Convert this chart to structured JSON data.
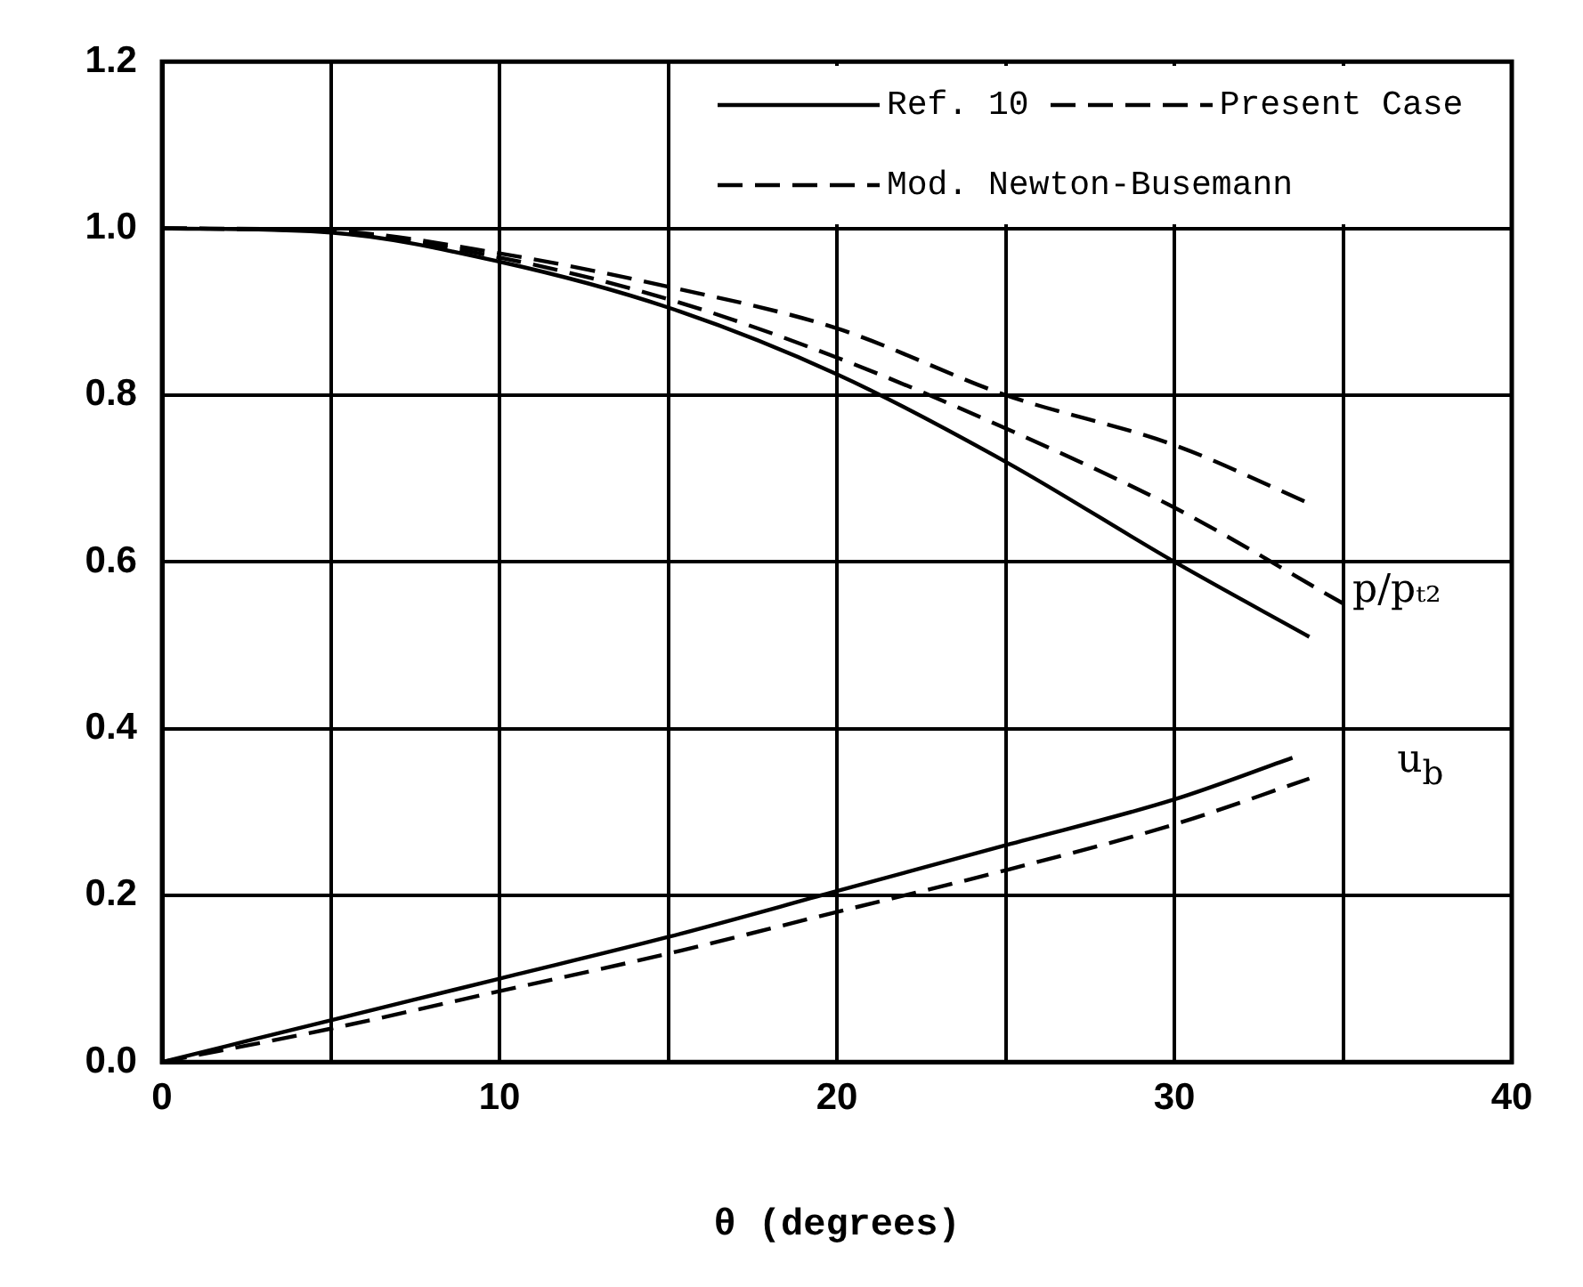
{
  "chart_data": {
    "type": "line",
    "xlabel": "θ (degrees)",
    "xlim": [
      0,
      40
    ],
    "xticks": [
      0,
      10,
      20,
      30,
      40
    ],
    "ylim": [
      0,
      1.2
    ],
    "yticks": [
      {
        "value": 0,
        "label": "0.0"
      },
      0.2,
      0.4,
      0.6,
      0.8,
      {
        "value": 1,
        "label": "1.0"
      },
      1.2
    ],
    "grid": true,
    "legend": "top right",
    "marker": "none",
    "series": [
      {
        "name": "Ref. 10",
        "color": "#000000",
        "line_style": "solid",
        "x": [
          0,
          5,
          10,
          15,
          20,
          25,
          30,
          34
        ],
        "values": [
          1.0,
          0.995,
          0.96,
          0.905,
          0.825,
          0.72,
          0.6,
          0.51
        ]
      },
      {
        "name": "Present Case",
        "color": "#000000",
        "line_style": "dashed",
        "x": [
          0,
          5,
          10,
          15,
          20,
          25,
          30,
          34
        ],
        "values": [
          1.0,
          0.997,
          0.97,
          0.93,
          0.88,
          0.8,
          0.74,
          0.67
        ]
      },
      {
        "name": "Mod. Newton-Busemann",
        "color": "#000000",
        "line_style": "dashed",
        "x": [
          0,
          5,
          10,
          15,
          20,
          25,
          30,
          35
        ],
        "values": [
          1.0,
          0.996,
          0.965,
          0.915,
          0.845,
          0.76,
          0.665,
          0.55
        ]
      },
      {
        "color": "#000000",
        "line_style": "solid",
        "x": [
          0,
          5,
          10,
          15,
          20,
          25,
          30,
          33.5
        ],
        "values": [
          0,
          0.05,
          0.1,
          0.15,
          0.205,
          0.26,
          0.315,
          0.365
        ]
      },
      {
        "color": "#000000",
        "line_style": "dashed",
        "x": [
          0,
          5,
          10,
          15,
          20,
          25,
          30,
          34
        ],
        "values": [
          0,
          0.04,
          0.085,
          0.13,
          0.18,
          0.23,
          0.285,
          0.34
        ]
      }
    ],
    "annotations": [
      "p/pₜ₂",
      "u$_{b}$"
    ]
  }
}
